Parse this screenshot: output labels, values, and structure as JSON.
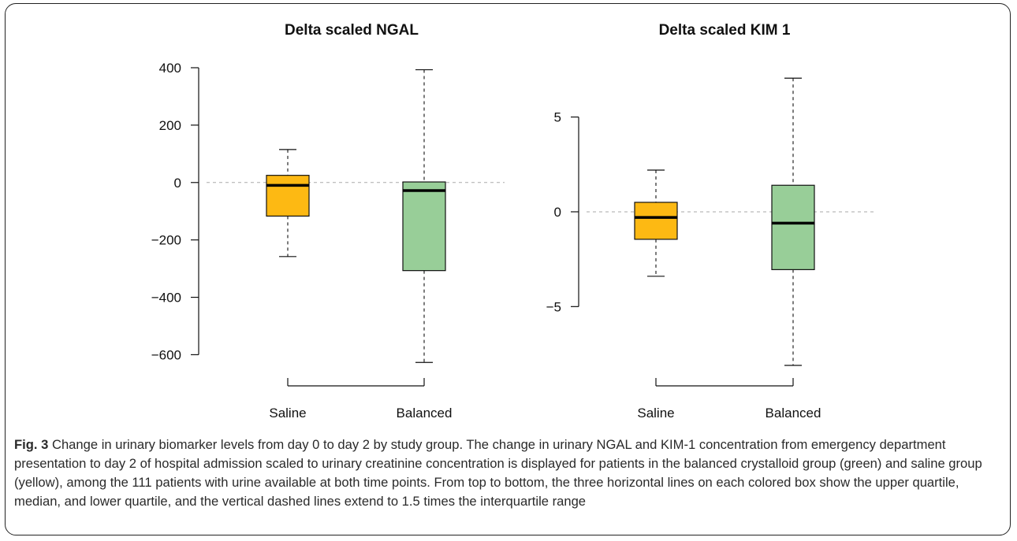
{
  "chart_data": [
    {
      "type": "boxplot",
      "title": "Delta scaled NGAL",
      "xlabel": "",
      "ylabel": "",
      "ylim": [
        -640,
        400
      ],
      "yticks": [
        400,
        200,
        0,
        -200,
        -400,
        -600
      ],
      "ytick_labels": [
        "400",
        "200",
        "0",
        "−200",
        "−400",
        "−600"
      ],
      "reference_line": 0,
      "grid": false,
      "categories": [
        "Saline",
        "Balanced"
      ],
      "boxes": [
        {
          "name": "Saline",
          "color": "#FDB913",
          "whisker_low": -258,
          "q1": -117,
          "median": -10,
          "q3": 25,
          "whisker_high": 115
        },
        {
          "name": "Balanced",
          "color": "#98CE98",
          "whisker_low": -627,
          "q1": -307,
          "median": -28,
          "q3": 2,
          "whisker_high": 393
        }
      ]
    },
    {
      "type": "boxplot",
      "title": "Delta scaled KIM 1",
      "xlabel": "",
      "ylabel": "",
      "ylim": [
        -8.6,
        7.6
      ],
      "yticks": [
        5,
        0,
        -5
      ],
      "ytick_labels": [
        "5",
        "0",
        "−5"
      ],
      "reference_line": 0,
      "grid": false,
      "categories": [
        "Saline",
        "Balanced"
      ],
      "boxes": [
        {
          "name": "Saline",
          "color": "#FDB913",
          "whisker_low": -3.4,
          "q1": -1.45,
          "median": -0.3,
          "q3": 0.5,
          "whisker_high": 2.2
        },
        {
          "name": "Balanced",
          "color": "#98CE98",
          "whisker_low": -8.1,
          "q1": -3.05,
          "median": -0.6,
          "q3": 1.4,
          "whisker_high": 7.05
        }
      ]
    }
  ],
  "caption": {
    "lead": "Fig. 3",
    "text": " Change in urinary biomarker levels from day 0 to day 2 by study group. The change in urinary NGAL and KIM-1 concentration from emergency department presentation to day 2 of hospital admission scaled to urinary creatinine concentration is displayed for patients in the balanced crystalloid group (green) and saline group (yellow), among the 111 patients with urine available at both time points. From top to bottom, the three horizontal lines on each colored box show the upper quartile, median, and lower quartile, and the vertical dashed lines extend to 1.5 times the interquartile range"
  }
}
